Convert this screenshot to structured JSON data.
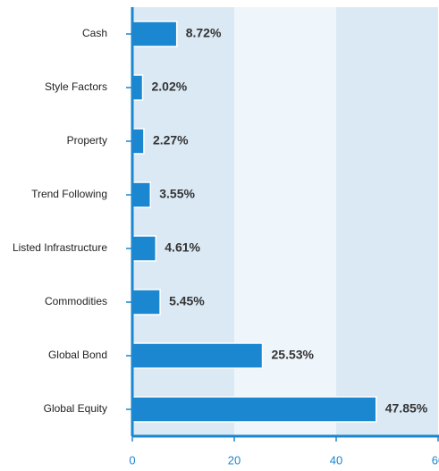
{
  "chart_data": {
    "type": "bar",
    "orientation": "horizontal",
    "categories": [
      "Cash",
      "Style Factors",
      "Property",
      "Trend Following",
      "Listed Infrastructure",
      "Commodities",
      "Global Bond",
      "Global Equity"
    ],
    "values": [
      8.72,
      2.02,
      2.27,
      3.55,
      4.61,
      5.45,
      25.53,
      47.85
    ],
    "value_labels": [
      "8.72%",
      "2.02%",
      "2.27%",
      "3.55%",
      "4.61%",
      "5.45%",
      "25.53%",
      "47.85%"
    ],
    "color": "#1a87d0",
    "xlim": [
      0,
      60
    ],
    "xticks": [
      0,
      20,
      40,
      60
    ]
  }
}
